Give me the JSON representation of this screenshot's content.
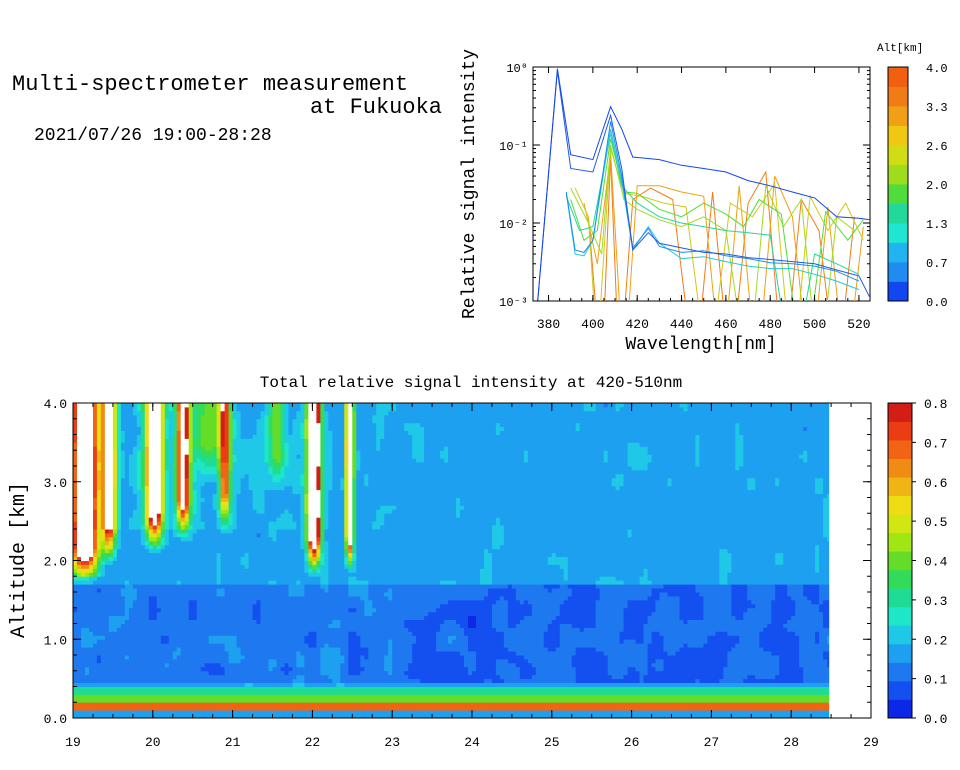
{
  "header": {
    "title_line1": "Multi-spectrometer measurement",
    "title_line2": "at Fukuoka",
    "subtitle": "2021/07/26 19:00-28:28"
  },
  "chart_data": [
    {
      "type": "line",
      "xlabel": "Wavelength[nm]",
      "ylabel": "Relative signal intensity",
      "xlim": [
        373,
        525
      ],
      "ylim_log10": [
        -3,
        0
      ],
      "y_scale": "log",
      "x_ticks": [
        "380",
        "400",
        "420",
        "440",
        "460",
        "480",
        "500",
        "520"
      ],
      "y_ticks": [
        "10⁻³",
        "10⁻²",
        "10⁻¹",
        "10⁰"
      ],
      "colorbar": {
        "title": "Alt[km]",
        "ticks": [
          "0.0",
          "0.7",
          "1.3",
          "2.0",
          "2.6",
          "3.3",
          "4.0"
        ],
        "colors": [
          "#1246f0",
          "#1e8cf0",
          "#22b4f0",
          "#1ee6d2",
          "#22d89a",
          "#50dc3c",
          "#a0dc1e",
          "#d2dc14",
          "#f0c814",
          "#f0a014",
          "#f07c18",
          "#f06010"
        ]
      },
      "series": [
        {
          "alt": 0.2,
          "color": "#1246f0",
          "x": [
            375,
            384,
            390,
            400,
            408,
            413,
            418,
            430,
            440,
            450,
            460,
            470,
            480,
            490,
            500,
            510,
            520,
            525
          ],
          "y": [
            0.0009,
            0.95,
            0.075,
            0.065,
            0.31,
            0.16,
            0.07,
            0.065,
            0.055,
            0.05,
            0.045,
            0.035,
            0.03,
            0.025,
            0.021,
            0.012,
            0.0115,
            0.011
          ]
        },
        {
          "alt": 0.5,
          "color": "#1e5ae6",
          "x": [
            375,
            384,
            390,
            400,
            408,
            413,
            418,
            425,
            430,
            440,
            450,
            460,
            470,
            480,
            490,
            500,
            510,
            520,
            525
          ],
          "y": [
            0.0009,
            0.9,
            0.05,
            0.045,
            0.24,
            0.05,
            0.0045,
            0.0075,
            0.0055,
            0.0048,
            0.0042,
            0.004,
            0.0036,
            0.0034,
            0.0032,
            0.003,
            0.0025,
            0.0021,
            0.0011
          ]
        },
        {
          "alt": 0.9,
          "color": "#1e8cf0",
          "x": [
            388,
            392,
            396,
            400,
            408,
            413,
            418,
            425,
            430,
            440,
            450,
            460,
            470,
            480,
            490,
            500,
            510,
            520
          ],
          "y": [
            0.025,
            0.0045,
            0.0042,
            0.006,
            0.2,
            0.04,
            0.0048,
            0.0085,
            0.005,
            0.0042,
            0.0044,
            0.0038,
            0.0035,
            0.0031,
            0.003,
            0.0028,
            0.0024,
            0.0018
          ]
        },
        {
          "alt": 1.3,
          "color": "#22c8e6",
          "x": [
            388,
            392,
            396,
            400,
            408,
            413,
            418,
            425,
            430,
            440,
            450,
            460,
            470,
            480,
            490,
            500,
            510,
            520
          ],
          "y": [
            0.024,
            0.004,
            0.0038,
            0.006,
            0.16,
            0.035,
            0.0045,
            0.009,
            0.0055,
            0.0035,
            0.0037,
            0.0032,
            0.0028,
            0.0026,
            0.0026,
            0.0022,
            0.0018,
            0.0014
          ]
        },
        {
          "alt": 1.7,
          "color": "#22d89a",
          "x": [
            388,
            394,
            400,
            408,
            413,
            420,
            430,
            440,
            450,
            460,
            470,
            480,
            490,
            500,
            510,
            520
          ],
          "y": [
            0.022,
            0.008,
            0.009,
            0.14,
            0.03,
            0.018,
            0.012,
            0.01,
            0.009,
            0.008,
            0.0075,
            0.007,
            0.0001,
            0.004,
            0.003,
            0.0022
          ]
        },
        {
          "alt": 2.2,
          "color": "#50dc3c",
          "x": [
            390,
            396,
            402,
            408,
            414,
            420,
            430,
            440,
            450,
            460,
            468,
            475,
            485,
            495,
            505,
            515,
            522
          ],
          "y": [
            0.02,
            0.006,
            0.008,
            0.12,
            0.025,
            0.024,
            0.015,
            0.012,
            0.018,
            0.013,
            0.009,
            0.02,
            0.013,
            0.0001,
            0.014,
            0.006,
            0.011
          ]
        },
        {
          "alt": 2.7,
          "color": "#a0dc1e",
          "x": [
            390,
            398,
            404,
            408,
            414,
            420,
            430,
            440,
            450,
            460,
            470,
            478,
            486,
            494,
            502,
            510,
            518
          ],
          "y": [
            0.028,
            0.01,
            0.004,
            0.1,
            0.02,
            0.015,
            0.011,
            0.009,
            0.012,
            0.008,
            0.0001,
            0.03,
            0.009,
            0.02,
            0.0001,
            0.012,
            0.008
          ]
        },
        {
          "alt": 3.2,
          "color": "#d2c814",
          "x": [
            392,
            398,
            402,
            408,
            414,
            422,
            432,
            442,
            452,
            462,
            472,
            482,
            490,
            498,
            506,
            514,
            522
          ],
          "y": [
            0.028,
            0.012,
            0.0002,
            0.09,
            0.024,
            0.022,
            0.018,
            0.016,
            0.0001,
            0.018,
            0.012,
            0.032,
            0.0001,
            0.022,
            0.008,
            0.018,
            0.006
          ]
        },
        {
          "alt": 3.7,
          "color": "#f0a014",
          "x": [
            396,
            402,
            408,
            414,
            420,
            430,
            440,
            450,
            458,
            466,
            474,
            482,
            490,
            498,
            506,
            514,
            522
          ],
          "y": [
            0.018,
            0.003,
            0.08,
            0.0001,
            0.03,
            0.03,
            0.025,
            0.022,
            0.0001,
            0.03,
            0.0001,
            0.04,
            0.012,
            0.0001,
            0.016,
            0.0001,
            0.009
          ]
        },
        {
          "alt": 4.0,
          "color": "#f07c18",
          "x": [
            398,
            404,
            408,
            412,
            418,
            426,
            436,
            446,
            454,
            462,
            470,
            478,
            486,
            494,
            502,
            510,
            518
          ],
          "y": [
            0.012,
            0.0001,
            0.07,
            0.0001,
            0.02,
            0.028,
            0.02,
            0.0001,
            0.025,
            0.0001,
            0.018,
            0.045,
            0.0001,
            0.02,
            0.008,
            0.0001,
            0.012
          ]
        }
      ]
    },
    {
      "type": "heatmap",
      "title": "Total relative signal intensity at 420-510nm",
      "ylabel": "Altitude [km]",
      "xlabel": "",
      "xlim": [
        19,
        29
      ],
      "ylim": [
        0,
        4
      ],
      "data_end_x": 28.47,
      "x_ticks": [
        "19",
        "20",
        "21",
        "22",
        "23",
        "24",
        "25",
        "26",
        "27",
        "28",
        "29"
      ],
      "y_ticks": [
        "0.0",
        "1.0",
        "2.0",
        "3.0",
        "4.0"
      ],
      "colorbar": {
        "ticks": [
          "0.0",
          "0.1",
          "0.2",
          "0.3",
          "0.4",
          "0.5",
          "0.6",
          "0.7",
          "0.8"
        ],
        "colors": [
          "#0a28e6",
          "#1450f0",
          "#1e78f0",
          "#1ea0f0",
          "#1ec8e6",
          "#1ee6c8",
          "#1edc96",
          "#32dc5a",
          "#64dc28",
          "#a0e614",
          "#d2e614",
          "#f0dc14",
          "#f0b414",
          "#f08c14",
          "#f06414",
          "#eb3c14",
          "#d21e14"
        ]
      },
      "regions": [
        {
          "name": "background",
          "value": 0.16
        },
        {
          "name": "near-surface-layer",
          "y_range": [
            0.15,
            0.35
          ],
          "value": 0.6
        },
        {
          "name": "low-band",
          "y_range": [
            0.5,
            1.5
          ],
          "value": 0.1
        },
        {
          "name": "cloud-19.0-19.5",
          "x_range": [
            19.0,
            19.5
          ],
          "y_range": [
            1.7,
            4.0
          ],
          "value": 0.8
        },
        {
          "name": "cloud-20.0-20.5",
          "x_range": [
            19.8,
            20.55
          ],
          "y_range": [
            2.2,
            4.0
          ],
          "value": 0.8
        },
        {
          "name": "cloud-20.8-21.1",
          "x_range": [
            20.75,
            21.15
          ],
          "y_range": [
            2.3,
            4.0
          ],
          "value": 0.65
        },
        {
          "name": "cloud-22.0",
          "x_range": [
            21.9,
            22.15
          ],
          "y_range": [
            2.05,
            4.0
          ],
          "value": 0.8
        },
        {
          "name": "cloud-22.5",
          "x_range": [
            22.35,
            22.6
          ],
          "y_range": [
            2.1,
            4.0
          ],
          "value": 0.8
        }
      ]
    }
  ]
}
